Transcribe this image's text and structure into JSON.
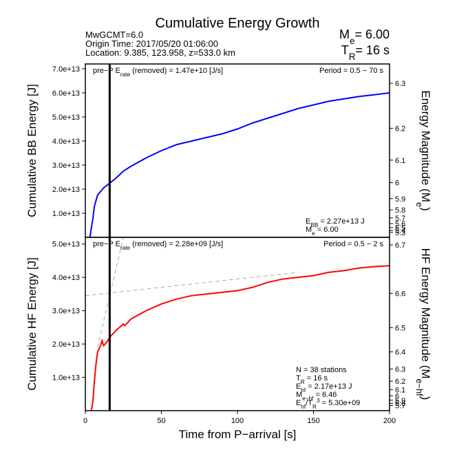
{
  "header": {
    "title": "Cumulative Energy Growth",
    "info": [
      "MwGCMT=6.0",
      "Origin Time: 2017/05/20 01:06:00",
      "Location: 9.385, 123.958, z=533.0 km"
    ],
    "me": {
      "parts": [
        {
          "text": "M"
        },
        {
          "text": "e",
          "shift": "sub"
        },
        {
          "text": "= 6.00"
        }
      ]
    },
    "tr": {
      "parts": [
        {
          "text": "T"
        },
        {
          "text": "R",
          "shift": "sub"
        },
        {
          "text": "= 16 s"
        }
      ],
      "value": 16
    }
  },
  "chart_data": [
    {
      "type": "line",
      "ylabel": "Cumulative BB Energy [J]",
      "y2label": {
        "parts": [
          {
            "text": "Energy Magnitude (M"
          },
          {
            "text": "e",
            "shift": "sub"
          },
          {
            "text": ")"
          }
        ]
      },
      "xlim": [
        0,
        200
      ],
      "ylim": [
        0,
        72000000000000
      ],
      "yticks": [
        {
          "value": 10000000000000,
          "label": "1.0e+13"
        },
        {
          "value": 20000000000000,
          "label": "2.0e+13"
        },
        {
          "value": 30000000000000,
          "label": "3.0e+13"
        },
        {
          "value": 40000000000000,
          "label": "4.0e+13"
        },
        {
          "value": 50000000000000,
          "label": "5.0e+13"
        },
        {
          "value": 60000000000000,
          "label": "6.0e+13"
        },
        {
          "value": 70000000000000,
          "label": "7.0e+13"
        }
      ],
      "y2ticks": [
        6.3,
        6.2,
        6.1,
        6.0,
        5.9,
        5.8,
        5.7,
        5.6,
        5.5,
        5.4,
        5.3
      ],
      "series": [
        {
          "color": "#0000ff",
          "x": [
            3,
            5,
            6,
            8,
            10,
            12,
            15,
            20,
            25,
            30,
            40,
            50,
            60,
            70,
            80,
            90,
            100,
            110,
            120,
            130,
            140,
            150,
            160,
            170,
            180,
            190,
            200
          ],
          "values": [
            0,
            8000000000000,
            13000000000000,
            17500000000000,
            19000000000000,
            20500000000000,
            22000000000000,
            24500000000000,
            27500000000000,
            29500000000000,
            33000000000000,
            36000000000000,
            38500000000000,
            40000000000000,
            41500000000000,
            43000000000000,
            45000000000000,
            47500000000000,
            49500000000000,
            51500000000000,
            53500000000000,
            55000000000000,
            56500000000000,
            57500000000000,
            58500000000000,
            59200000000000,
            60000000000000
          ]
        }
      ],
      "annotations_left": [
        {
          "parts": [
            {
              "text": "pre−P E"
            },
            {
              "text": "rate",
              "shift": "sub"
            },
            {
              "text": " (removed) = 1.47e+10 [J/s]"
            }
          ]
        }
      ],
      "annotations_right_top": [
        {
          "parts": [
            {
              "text": "Period = 0.5 − 70 s"
            }
          ]
        }
      ],
      "energy_note": {
        "parts": [
          {
            "text": "E"
          },
          {
            "text": "BB",
            "shift": "sub"
          },
          {
            "text": " = 2.27e+13 J"
          }
        ],
        "value": 22700000000000
      },
      "magnitude_note": {
        "parts": [
          {
            "text": "M"
          },
          {
            "text": "e",
            "shift": "sub"
          },
          {
            "text": " = 6.00"
          }
        ],
        "value": 6.0
      },
      "notes": []
    },
    {
      "type": "line",
      "ylabel": "Cumulative HF Energy [J]",
      "y2label": {
        "parts": [
          {
            "text": "HF Energy Magnitude (M"
          },
          {
            "text": "e−hf",
            "shift": "sub"
          },
          {
            "text": ")"
          }
        ]
      },
      "xlabel": "Time from P−arrival [s]",
      "xlim": [
        0,
        200
      ],
      "xticks": [
        0,
        50,
        100,
        150,
        200
      ],
      "ylim": [
        0,
        52000000000000
      ],
      "yticks": [
        {
          "value": 10000000000000,
          "label": "1.0e+13"
        },
        {
          "value": 20000000000000,
          "label": "2.0e+13"
        },
        {
          "value": 30000000000000,
          "label": "3.0e+13"
        },
        {
          "value": 40000000000000,
          "label": "4.0e+13"
        },
        {
          "value": 50000000000000,
          "label": "5.0e+13"
        }
      ],
      "y2ticks": [
        6.7,
        6.6,
        6.5,
        6.4,
        6.3,
        6.2,
        6.1,
        6.0,
        5.9,
        5.8,
        5.7
      ],
      "series": [
        {
          "color": "#ff0000",
          "x": [
            4,
            5,
            6,
            7,
            8,
            10,
            11,
            12,
            14,
            16,
            20,
            25,
            26,
            30,
            40,
            50,
            60,
            70,
            80,
            90,
            100,
            110,
            120,
            130,
            140,
            150,
            160,
            170,
            180,
            190,
            200
          ],
          "values": [
            0,
            3000000000000,
            9000000000000,
            14000000000000,
            17500000000000,
            19500000000000,
            21000000000000,
            19500000000000,
            20500000000000,
            22000000000000,
            24000000000000,
            26000000000000,
            25500000000000,
            27500000000000,
            30000000000000,
            32000000000000,
            33500000000000,
            34500000000000,
            35000000000000,
            35500000000000,
            36000000000000,
            37000000000000,
            38500000000000,
            39500000000000,
            40000000000000,
            40500000000000,
            41500000000000,
            42000000000000,
            42800000000000,
            43200000000000,
            43500000000000
          ]
        }
      ],
      "reference_lines": [
        {
          "color": "#aaaaaa",
          "x": [
            0,
            140
          ],
          "values": [
            34500000000000,
            41500000000000
          ]
        },
        {
          "color": "#aaaaaa",
          "x": [
            8,
            25
          ],
          "values": [
            19000000000000,
            52000000000000
          ]
        }
      ],
      "annotations_left": [
        {
          "parts": [
            {
              "text": "pre−P E"
            },
            {
              "text": "rate",
              "shift": "sub"
            },
            {
              "text": " (removed) = 2.28e+09 [J/s]"
            }
          ]
        }
      ],
      "annotations_right_top": [
        {
          "parts": [
            {
              "text": "Period = 0.5 − 2 s"
            }
          ]
        }
      ],
      "notes": [
        {
          "parts": [
            {
              "text": "N = 38 stations"
            }
          ]
        },
        {
          "parts": [
            {
              "text": "T"
            },
            {
              "text": "R",
              "shift": "sub"
            },
            {
              "text": " = 16  s"
            }
          ]
        }
      ],
      "energy_note": {
        "parts": [
          {
            "text": "E"
          },
          {
            "text": "hf",
            "shift": "sub"
          },
          {
            "text": " = 2.17e+13 J"
          }
        ],
        "value": 21700000000000
      },
      "magnitude_note": {
        "parts": [
          {
            "text": "M"
          },
          {
            "text": "e−hf",
            "shift": "sub"
          },
          {
            "text": " = 6.46"
          }
        ],
        "value": 6.46
      },
      "notes_after": [
        {
          "parts": [
            {
              "text": "E"
            },
            {
              "text": "hf",
              "shift": "sub"
            },
            {
              "text": "/T"
            },
            {
              "text": "R",
              "shift": "sub"
            },
            {
              "text": "3",
              "shift": "super"
            },
            {
              "text": " = 5.30e+09"
            }
          ]
        }
      ]
    }
  ]
}
